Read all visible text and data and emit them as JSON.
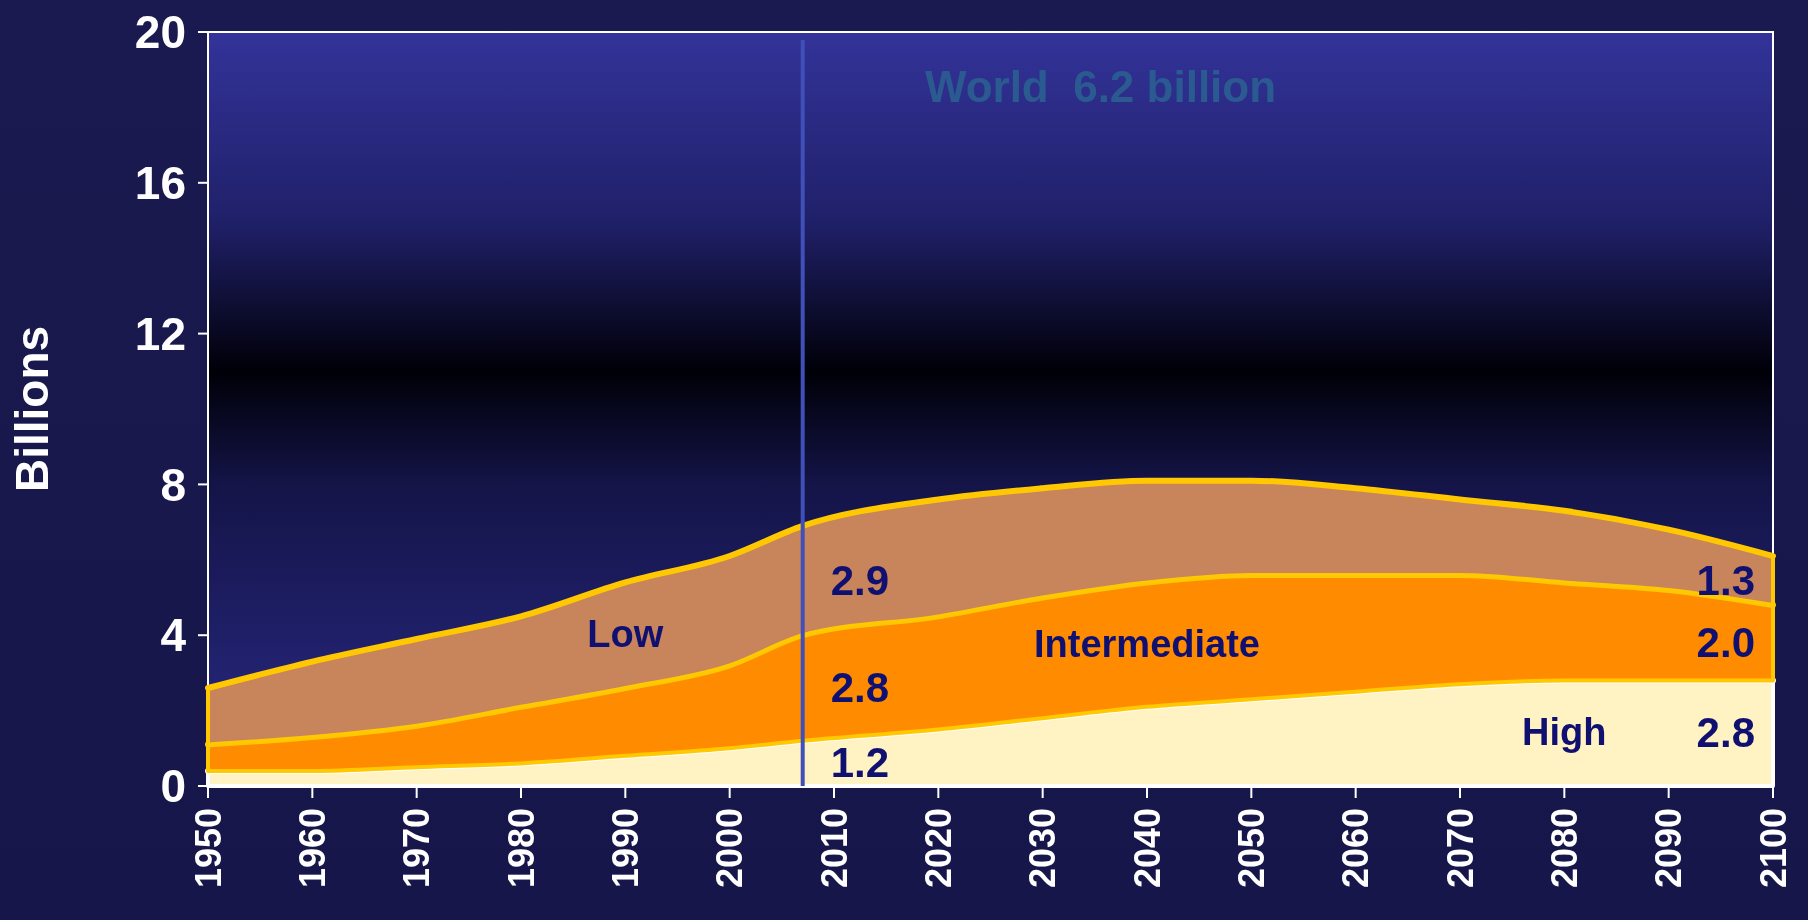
{
  "chart_data": {
    "type": "area",
    "stacked": true,
    "ylabel": "Billions",
    "x": [
      1950,
      1960,
      1970,
      1980,
      1990,
      2000,
      2007,
      2020,
      2030,
      2040,
      2050,
      2060,
      2070,
      2080,
      2090,
      2100
    ],
    "xlim": [
      1950,
      2100
    ],
    "xticks": [
      1950,
      1960,
      1970,
      1980,
      1990,
      2000,
      2010,
      2020,
      2030,
      2040,
      2050,
      2060,
      2070,
      2080,
      2090,
      2100
    ],
    "ylim": [
      0,
      20
    ],
    "yticks": [
      0,
      4,
      8,
      12,
      16,
      20
    ],
    "grid": false,
    "series": [
      {
        "name": "High",
        "color": "#fff3c4",
        "values": [
          0.4,
          0.4,
          0.5,
          0.6,
          0.8,
          1.0,
          1.2,
          1.5,
          1.8,
          2.1,
          2.3,
          2.5,
          2.7,
          2.8,
          2.8,
          2.8
        ],
        "value_labels": [
          null,
          null,
          null,
          null,
          null,
          null,
          "1.2",
          null,
          null,
          null,
          null,
          null,
          null,
          null,
          null,
          "2.8"
        ]
      },
      {
        "name": "Intermediate",
        "color": "#ff8c00",
        "values": [
          0.7,
          0.9,
          1.1,
          1.5,
          1.8,
          2.2,
          2.8,
          3.0,
          3.2,
          3.3,
          3.3,
          3.1,
          2.9,
          2.6,
          2.4,
          2.0
        ],
        "value_labels": [
          null,
          null,
          null,
          null,
          null,
          null,
          "2.8",
          null,
          null,
          null,
          null,
          null,
          null,
          null,
          null,
          "2.0"
        ]
      },
      {
        "name": "Low",
        "color": "#c8845a",
        "values": [
          1.5,
          2.0,
          2.3,
          2.4,
          2.8,
          2.9,
          2.9,
          3.1,
          2.9,
          2.7,
          2.5,
          2.3,
          2.0,
          1.9,
          1.6,
          1.3
        ],
        "value_labels": [
          null,
          null,
          null,
          null,
          null,
          null,
          "2.9",
          null,
          null,
          null,
          null,
          null,
          null,
          null,
          null,
          "1.3"
        ]
      }
    ],
    "ref_lines": [
      {
        "axis": "x",
        "value": 2007,
        "color": "#4050b8"
      }
    ],
    "annotations": [
      "World  6.2 billion"
    ]
  }
}
